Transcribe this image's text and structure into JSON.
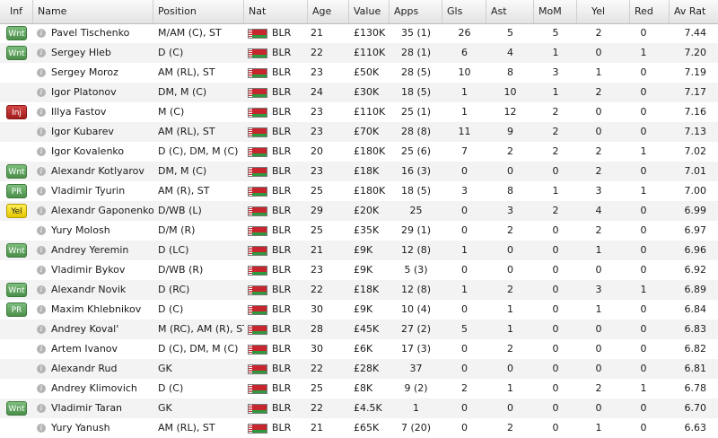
{
  "colors": {
    "green_badge": "#4b8f4b",
    "red_badge": "#a11d1d",
    "yellow_badge": "#e6c600"
  },
  "columns": {
    "inf": "Inf",
    "name": "Name",
    "position": "Position",
    "nat": "Nat",
    "age": "Age",
    "value": "Value",
    "apps": "Apps",
    "gls": "Gls",
    "ast": "Ast",
    "mom": "MoM",
    "yel": "Yel",
    "red": "Red",
    "av_rat": "Av Rat"
  },
  "players": [
    {
      "inf": "Wnt",
      "inf_color": "green",
      "name": "Pavel Tischenko",
      "position": "M/AM (C), ST",
      "nat": "BLR",
      "age": "21",
      "value": "£130K",
      "apps": "35 (1)",
      "gls": "26",
      "ast": "5",
      "mom": "5",
      "yel": "2",
      "red": "0",
      "av_rat": "7.44"
    },
    {
      "inf": "Wnt",
      "inf_color": "green",
      "name": "Sergey Hleb",
      "position": "D (C)",
      "nat": "BLR",
      "age": "22",
      "value": "£110K",
      "apps": "28 (1)",
      "gls": "6",
      "ast": "4",
      "mom": "1",
      "yel": "0",
      "red": "1",
      "av_rat": "7.20"
    },
    {
      "inf": "",
      "inf_color": "",
      "name": "Sergey Moroz",
      "position": "AM (RL), ST",
      "nat": "BLR",
      "age": "23",
      "value": "£50K",
      "apps": "28 (5)",
      "gls": "10",
      "ast": "8",
      "mom": "3",
      "yel": "1",
      "red": "0",
      "av_rat": "7.19"
    },
    {
      "inf": "",
      "inf_color": "",
      "name": "Igor Platonov",
      "position": "DM, M (C)",
      "nat": "BLR",
      "age": "24",
      "value": "£30K",
      "apps": "18 (5)",
      "gls": "1",
      "ast": "10",
      "mom": "1",
      "yel": "2",
      "red": "0",
      "av_rat": "7.17"
    },
    {
      "inf": "Inj",
      "inf_color": "red",
      "name": "Illya Fastov",
      "position": "M (C)",
      "nat": "BLR",
      "age": "23",
      "value": "£110K",
      "apps": "25 (1)",
      "gls": "1",
      "ast": "12",
      "mom": "2",
      "yel": "0",
      "red": "0",
      "av_rat": "7.16"
    },
    {
      "inf": "",
      "inf_color": "",
      "name": "Igor Kubarev",
      "position": "AM (RL), ST",
      "nat": "BLR",
      "age": "23",
      "value": "£70K",
      "apps": "28 (8)",
      "gls": "11",
      "ast": "9",
      "mom": "2",
      "yel": "0",
      "red": "0",
      "av_rat": "7.13"
    },
    {
      "inf": "",
      "inf_color": "",
      "name": "Igor Kovalenko",
      "position": "D (C), DM, M (C)",
      "nat": "BLR",
      "age": "20",
      "value": "£180K",
      "apps": "25 (6)",
      "gls": "7",
      "ast": "2",
      "mom": "2",
      "yel": "2",
      "red": "1",
      "av_rat": "7.02"
    },
    {
      "inf": "Wnt",
      "inf_color": "green",
      "name": "Alexandr Kotlyarov",
      "position": "DM, M (C)",
      "nat": "BLR",
      "age": "23",
      "value": "£18K",
      "apps": "16 (3)",
      "gls": "0",
      "ast": "0",
      "mom": "0",
      "yel": "2",
      "red": "0",
      "av_rat": "7.01"
    },
    {
      "inf": "PR",
      "inf_color": "green",
      "name": "Vladimir Tyurin",
      "position": "AM (R), ST",
      "nat": "BLR",
      "age": "25",
      "value": "£180K",
      "apps": "18 (5)",
      "gls": "3",
      "ast": "8",
      "mom": "1",
      "yel": "3",
      "red": "1",
      "av_rat": "7.00"
    },
    {
      "inf": "Yel",
      "inf_color": "yellow",
      "name": "Alexandr Gaponenko",
      "position": "D/WB (L)",
      "nat": "BLR",
      "age": "29",
      "value": "£20K",
      "apps": "25",
      "gls": "0",
      "ast": "3",
      "mom": "2",
      "yel": "4",
      "red": "0",
      "av_rat": "6.99"
    },
    {
      "inf": "",
      "inf_color": "",
      "name": "Yury Molosh",
      "position": "D/M (R)",
      "nat": "BLR",
      "age": "25",
      "value": "£35K",
      "apps": "29 (1)",
      "gls": "0",
      "ast": "2",
      "mom": "0",
      "yel": "2",
      "red": "0",
      "av_rat": "6.97"
    },
    {
      "inf": "Wnt",
      "inf_color": "green",
      "name": "Andrey Yeremin",
      "position": "D (LC)",
      "nat": "BLR",
      "age": "21",
      "value": "£9K",
      "apps": "12 (8)",
      "gls": "1",
      "ast": "0",
      "mom": "0",
      "yel": "1",
      "red": "0",
      "av_rat": "6.96"
    },
    {
      "inf": "",
      "inf_color": "",
      "name": "Vladimir Bykov",
      "position": "D/WB (R)",
      "nat": "BLR",
      "age": "23",
      "value": "£9K",
      "apps": "5 (3)",
      "gls": "0",
      "ast": "0",
      "mom": "0",
      "yel": "0",
      "red": "0",
      "av_rat": "6.92"
    },
    {
      "inf": "Wnt",
      "inf_color": "green",
      "name": "Alexandr Novik",
      "position": "D (RC)",
      "nat": "BLR",
      "age": "22",
      "value": "£18K",
      "apps": "12 (8)",
      "gls": "1",
      "ast": "2",
      "mom": "0",
      "yel": "3",
      "red": "1",
      "av_rat": "6.89"
    },
    {
      "inf": "PR",
      "inf_color": "green",
      "name": "Maxim Khlebnikov",
      "position": "D (C)",
      "nat": "BLR",
      "age": "30",
      "value": "£9K",
      "apps": "10 (4)",
      "gls": "0",
      "ast": "1",
      "mom": "0",
      "yel": "1",
      "red": "0",
      "av_rat": "6.84"
    },
    {
      "inf": "",
      "inf_color": "",
      "name": "Andrey Koval'",
      "position": "M (RC), AM (R), ST",
      "nat": "BLR",
      "age": "28",
      "value": "£45K",
      "apps": "27 (2)",
      "gls": "5",
      "ast": "1",
      "mom": "0",
      "yel": "0",
      "red": "0",
      "av_rat": "6.83"
    },
    {
      "inf": "",
      "inf_color": "",
      "name": "Artem Ivanov",
      "position": "D (C), DM, M (C)",
      "nat": "BLR",
      "age": "30",
      "value": "£6K",
      "apps": "17 (3)",
      "gls": "0",
      "ast": "2",
      "mom": "0",
      "yel": "0",
      "red": "0",
      "av_rat": "6.82"
    },
    {
      "inf": "",
      "inf_color": "",
      "name": "Alexandr Rud",
      "position": "GK",
      "nat": "BLR",
      "age": "22",
      "value": "£28K",
      "apps": "37",
      "gls": "0",
      "ast": "0",
      "mom": "0",
      "yel": "0",
      "red": "0",
      "av_rat": "6.81"
    },
    {
      "inf": "",
      "inf_color": "",
      "name": "Andrey Klimovich",
      "position": "D (C)",
      "nat": "BLR",
      "age": "25",
      "value": "£8K",
      "apps": "9 (2)",
      "gls": "2",
      "ast": "1",
      "mom": "0",
      "yel": "2",
      "red": "1",
      "av_rat": "6.78"
    },
    {
      "inf": "Wnt",
      "inf_color": "green",
      "name": "Vladimir Taran",
      "position": "GK",
      "nat": "BLR",
      "age": "22",
      "value": "£4.5K",
      "apps": "1",
      "gls": "0",
      "ast": "0",
      "mom": "0",
      "yel": "0",
      "red": "0",
      "av_rat": "6.70"
    },
    {
      "inf": "",
      "inf_color": "",
      "name": "Yury Yanush",
      "position": "AM (RL), ST",
      "nat": "BLR",
      "age": "21",
      "value": "£65K",
      "apps": "7 (20)",
      "gls": "0",
      "ast": "2",
      "mom": "0",
      "yel": "1",
      "red": "0",
      "av_rat": "6.63"
    }
  ]
}
